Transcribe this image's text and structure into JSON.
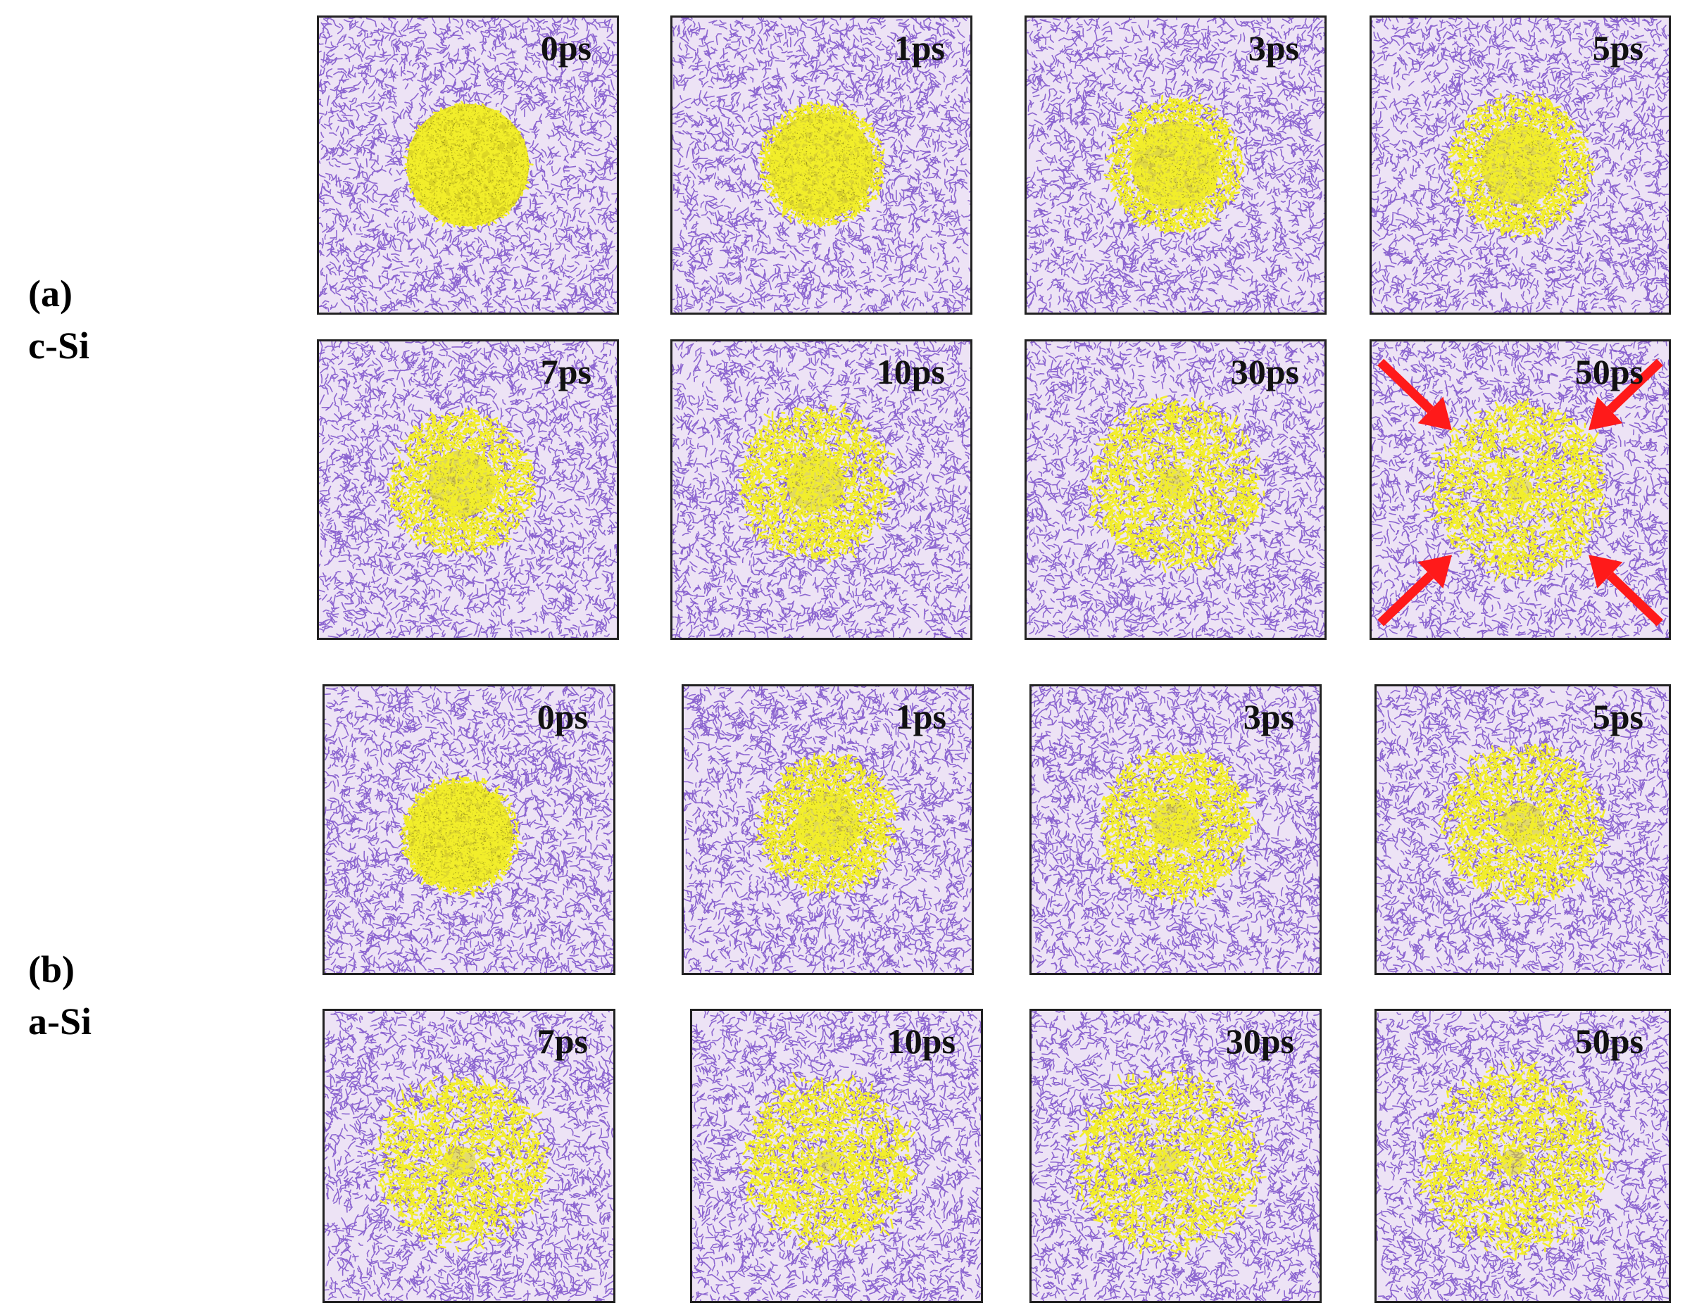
{
  "colors": {
    "matrix_atoms": "#7a4fc9",
    "matrix_background": "#ede3f5",
    "cluster_atoms": "#dcd61a",
    "cluster_highlight": "#f2ee2a",
    "arrow": "#ff1a1a",
    "panel_border": "#222222"
  },
  "groups": [
    {
      "label": "(a)",
      "sublabel": "c-Si",
      "rows": [
        {
          "panels": [
            {
              "time": "0ps"
            },
            {
              "time": "1ps"
            },
            {
              "time": "3ps"
            },
            {
              "time": "5ps"
            }
          ]
        },
        {
          "panels": [
            {
              "time": "7ps"
            },
            {
              "time": "10ps"
            },
            {
              "time": "30ps"
            },
            {
              "time": "50ps",
              "arrows": true
            }
          ]
        }
      ]
    },
    {
      "label": "(b)",
      "sublabel": "a-Si",
      "rows": [
        {
          "panels": [
            {
              "time": "0ps"
            },
            {
              "time": "1ps"
            },
            {
              "time": "3ps"
            },
            {
              "time": "5ps"
            }
          ]
        },
        {
          "panels": [
            {
              "time": "7ps"
            },
            {
              "time": "10ps"
            },
            {
              "time": "30ps"
            },
            {
              "time": "50ps"
            }
          ]
        }
      ]
    }
  ]
}
